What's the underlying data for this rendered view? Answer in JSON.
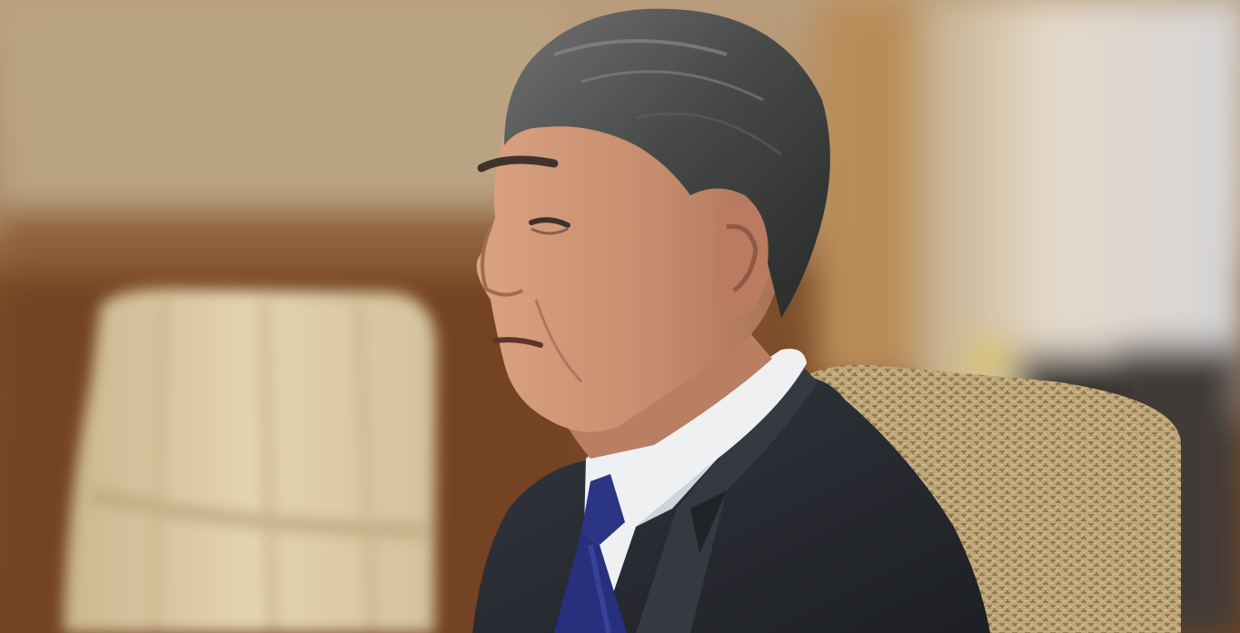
{
  "scene": {
    "kind": "photograph",
    "subjects": [
      "man-in-dark-suit",
      "beige-armchair-left",
      "patterned-armchair-right"
    ],
    "palette": {
      "background_warm": "#8a5a32",
      "background_light": "#c9b89f",
      "right_wall": "#d9d5cf",
      "left_chair": "#d9c6a0",
      "right_chair": "#cdb27e",
      "suit": "#23262d",
      "shirt": "#eef0f2",
      "tie": "#1f2a78",
      "hair": "#3d3f3f",
      "skin": "#c98e6c"
    }
  }
}
